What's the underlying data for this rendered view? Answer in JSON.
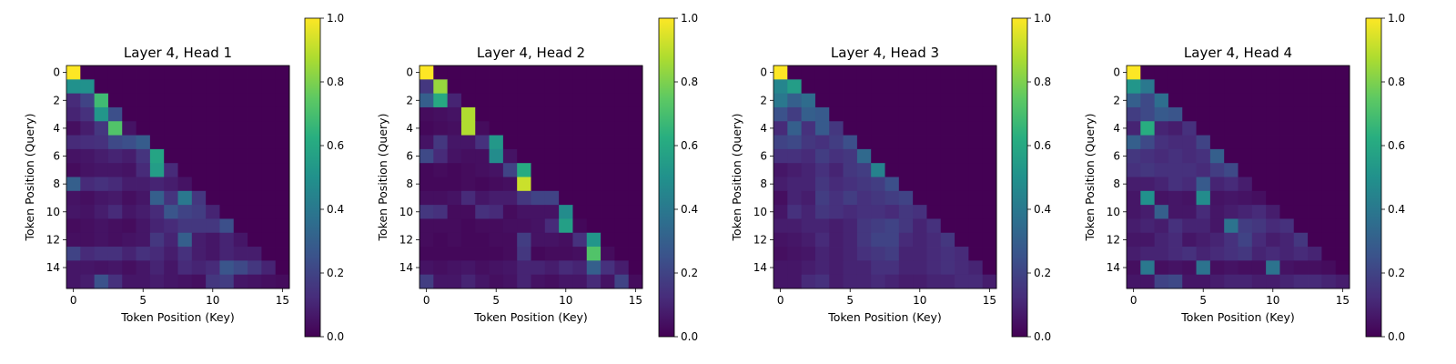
{
  "chart_data": [
    {
      "type": "heatmap",
      "title": "Layer 4, Head 1",
      "xlabel": "Token Position (Key)",
      "ylabel": "Token Position (Query)",
      "x_ticks": [
        0,
        5,
        10,
        15
      ],
      "y_ticks": [
        0,
        2,
        4,
        6,
        8,
        10,
        12,
        14
      ],
      "colorbar": {
        "min": 0.0,
        "max": 1.0,
        "ticks": [
          "0.0",
          "0.2",
          "0.4",
          "0.6",
          "0.8",
          "1.0"
        ]
      },
      "values": [
        [
          1.0
        ],
        [
          0.5,
          0.5
        ],
        [
          0.12,
          0.2,
          0.68
        ],
        [
          0.1,
          0.14,
          0.52,
          0.24
        ],
        [
          0.04,
          0.08,
          0.16,
          0.72,
          0.05
        ],
        [
          0.12,
          0.13,
          0.14,
          0.22,
          0.24,
          0.29
        ],
        [
          0.05,
          0.06,
          0.08,
          0.1,
          0.08,
          0.15,
          0.58
        ],
        [
          0.03,
          0.05,
          0.06,
          0.06,
          0.05,
          0.12,
          0.55,
          0.12
        ],
        [
          0.3,
          0.12,
          0.14,
          0.12,
          0.08,
          0.08,
          0.1,
          0.08,
          0.05
        ],
        [
          0.05,
          0.04,
          0.06,
          0.07,
          0.04,
          0.06,
          0.3,
          0.15,
          0.4,
          0.16
        ],
        [
          0.06,
          0.05,
          0.08,
          0.12,
          0.06,
          0.08,
          0.12,
          0.26,
          0.2,
          0.18,
          0.1
        ],
        [
          0.03,
          0.04,
          0.05,
          0.04,
          0.03,
          0.06,
          0.1,
          0.12,
          0.16,
          0.16,
          0.16,
          0.24
        ],
        [
          0.04,
          0.04,
          0.05,
          0.04,
          0.05,
          0.06,
          0.16,
          0.1,
          0.3,
          0.08,
          0.06,
          0.1,
          0.06
        ],
        [
          0.2,
          0.12,
          0.14,
          0.14,
          0.1,
          0.14,
          0.12,
          0.08,
          0.14,
          0.08,
          0.06,
          0.1,
          0.08,
          0.08
        ],
        [
          0.06,
          0.06,
          0.05,
          0.06,
          0.04,
          0.06,
          0.1,
          0.06,
          0.12,
          0.1,
          0.12,
          0.26,
          0.22,
          0.16,
          0.1
        ],
        [
          0.06,
          0.08,
          0.25,
          0.14,
          0.06,
          0.06,
          0.08,
          0.06,
          0.05,
          0.04,
          0.16,
          0.18,
          0.06,
          0.05,
          0.04,
          0.03
        ]
      ]
    },
    {
      "type": "heatmap",
      "title": "Layer 4, Head 2",
      "xlabel": "Token Position (Key)",
      "ylabel": "Token Position (Query)",
      "x_ticks": [
        0,
        5,
        10,
        15
      ],
      "y_ticks": [
        0,
        2,
        4,
        6,
        8,
        10,
        12,
        14
      ],
      "colorbar": {
        "min": 0.0,
        "max": 1.0,
        "ticks": [
          "0.0",
          "0.2",
          "0.4",
          "0.6",
          "0.8",
          "1.0"
        ]
      },
      "values": [
        [
          1.0
        ],
        [
          0.16,
          0.84
        ],
        [
          0.3,
          0.6,
          0.1
        ],
        [
          0.03,
          0.04,
          0.05,
          0.88
        ],
        [
          0.02,
          0.03,
          0.04,
          0.88,
          0.03
        ],
        [
          0.05,
          0.16,
          0.06,
          0.06,
          0.14,
          0.53
        ],
        [
          0.22,
          0.12,
          0.05,
          0.04,
          0.04,
          0.48,
          0.05
        ],
        [
          0.02,
          0.03,
          0.02,
          0.03,
          0.04,
          0.05,
          0.2,
          0.61
        ],
        [
          0.02,
          0.02,
          0.02,
          0.03,
          0.02,
          0.03,
          0.04,
          0.92
        ],
        [
          0.04,
          0.04,
          0.05,
          0.12,
          0.06,
          0.08,
          0.08,
          0.16,
          0.2,
          0.2
        ],
        [
          0.16,
          0.14,
          0.03,
          0.03,
          0.14,
          0.12,
          0.03,
          0.05,
          0.05,
          0.05,
          0.48
        ],
        [
          0.03,
          0.03,
          0.03,
          0.02,
          0.03,
          0.03,
          0.04,
          0.04,
          0.05,
          0.12,
          0.56,
          0.02
        ],
        [
          0.03,
          0.02,
          0.03,
          0.02,
          0.02,
          0.03,
          0.03,
          0.18,
          0.05,
          0.05,
          0.04,
          0.14,
          0.52
        ],
        [
          0.02,
          0.02,
          0.02,
          0.02,
          0.02,
          0.02,
          0.03,
          0.16,
          0.02,
          0.03,
          0.03,
          0.04,
          0.72,
          0.03
        ],
        [
          0.05,
          0.04,
          0.05,
          0.06,
          0.04,
          0.05,
          0.06,
          0.1,
          0.1,
          0.08,
          0.12,
          0.1,
          0.3,
          0.14,
          0.08
        ],
        [
          0.18,
          0.06,
          0.06,
          0.1,
          0.06,
          0.04,
          0.05,
          0.1,
          0.05,
          0.04,
          0.06,
          0.06,
          0.12,
          0.05,
          0.2,
          0.03
        ]
      ]
    },
    {
      "type": "heatmap",
      "title": "Layer 4, Head 3",
      "xlabel": "Token Position (Key)",
      "ylabel": "Token Position (Query)",
      "x_ticks": [
        0,
        5,
        10,
        15
      ],
      "y_ticks": [
        0,
        2,
        4,
        6,
        8,
        10,
        12,
        14
      ],
      "colorbar": {
        "min": 0.0,
        "max": 1.0,
        "ticks": [
          "0.0",
          "0.2",
          "0.4",
          "0.6",
          "0.8",
          "1.0"
        ]
      },
      "values": [
        [
          1.0
        ],
        [
          0.45,
          0.55
        ],
        [
          0.4,
          0.3,
          0.35
        ],
        [
          0.25,
          0.18,
          0.3,
          0.28
        ],
        [
          0.12,
          0.3,
          0.14,
          0.28,
          0.16
        ],
        [
          0.2,
          0.22,
          0.16,
          0.14,
          0.18,
          0.24
        ],
        [
          0.14,
          0.14,
          0.12,
          0.18,
          0.14,
          0.16,
          0.34
        ],
        [
          0.06,
          0.08,
          0.1,
          0.14,
          0.1,
          0.16,
          0.18,
          0.44
        ],
        [
          0.08,
          0.1,
          0.1,
          0.16,
          0.12,
          0.14,
          0.16,
          0.18,
          0.24
        ],
        [
          0.04,
          0.1,
          0.08,
          0.18,
          0.14,
          0.18,
          0.14,
          0.16,
          0.18,
          0.2
        ],
        [
          0.06,
          0.14,
          0.1,
          0.16,
          0.14,
          0.12,
          0.14,
          0.14,
          0.12,
          0.16,
          0.14
        ],
        [
          0.08,
          0.08,
          0.1,
          0.1,
          0.08,
          0.1,
          0.16,
          0.18,
          0.2,
          0.16,
          0.1,
          0.14
        ],
        [
          0.05,
          0.06,
          0.08,
          0.12,
          0.08,
          0.1,
          0.16,
          0.2,
          0.2,
          0.12,
          0.1,
          0.12,
          0.16
        ],
        [
          0.04,
          0.05,
          0.06,
          0.1,
          0.08,
          0.1,
          0.14,
          0.16,
          0.18,
          0.1,
          0.1,
          0.12,
          0.14,
          0.12
        ],
        [
          0.06,
          0.06,
          0.08,
          0.1,
          0.08,
          0.1,
          0.1,
          0.14,
          0.14,
          0.1,
          0.1,
          0.12,
          0.14,
          0.12,
          0.1
        ],
        [
          0.06,
          0.06,
          0.12,
          0.14,
          0.08,
          0.1,
          0.1,
          0.12,
          0.1,
          0.08,
          0.08,
          0.1,
          0.1,
          0.12,
          0.12,
          0.08
        ]
      ]
    },
    {
      "type": "heatmap",
      "title": "Layer 4, Head 4",
      "xlabel": "Token Position (Key)",
      "ylabel": "Token Position (Query)",
      "x_ticks": [
        0,
        5,
        10,
        15
      ],
      "y_ticks": [
        0,
        2,
        4,
        6,
        8,
        10,
        12,
        14
      ],
      "colorbar": {
        "min": 0.0,
        "max": 1.0,
        "ticks": [
          "0.0",
          "0.2",
          "0.4",
          "0.6",
          "0.8",
          "1.0"
        ]
      },
      "values": [
        [
          1.0
        ],
        [
          0.52,
          0.4
        ],
        [
          0.3,
          0.22,
          0.36
        ],
        [
          0.18,
          0.22,
          0.28,
          0.26
        ],
        [
          0.1,
          0.62,
          0.1,
          0.08,
          0.14
        ],
        [
          0.3,
          0.22,
          0.14,
          0.12,
          0.12,
          0.2
        ],
        [
          0.16,
          0.14,
          0.12,
          0.14,
          0.12,
          0.14,
          0.3
        ],
        [
          0.14,
          0.16,
          0.14,
          0.14,
          0.14,
          0.12,
          0.18,
          0.22
        ],
        [
          0.08,
          0.08,
          0.1,
          0.14,
          0.12,
          0.28,
          0.1,
          0.12,
          0.08
        ],
        [
          0.06,
          0.5,
          0.05,
          0.06,
          0.05,
          0.48,
          0.05,
          0.06,
          0.05,
          0.04
        ],
        [
          0.06,
          0.08,
          0.3,
          0.06,
          0.06,
          0.12,
          0.06,
          0.08,
          0.1,
          0.12,
          0.08
        ],
        [
          0.08,
          0.1,
          0.08,
          0.14,
          0.1,
          0.1,
          0.06,
          0.38,
          0.18,
          0.16,
          0.12,
          0.14
        ],
        [
          0.06,
          0.06,
          0.1,
          0.12,
          0.06,
          0.08,
          0.1,
          0.14,
          0.2,
          0.12,
          0.08,
          0.1,
          0.16
        ],
        [
          0.08,
          0.1,
          0.1,
          0.12,
          0.14,
          0.1,
          0.12,
          0.14,
          0.16,
          0.1,
          0.12,
          0.1,
          0.12,
          0.1
        ],
        [
          0.04,
          0.4,
          0.04,
          0.05,
          0.04,
          0.38,
          0.04,
          0.05,
          0.04,
          0.04,
          0.38,
          0.05,
          0.04,
          0.04,
          0.03
        ],
        [
          0.06,
          0.06,
          0.2,
          0.22,
          0.06,
          0.06,
          0.08,
          0.1,
          0.1,
          0.08,
          0.08,
          0.1,
          0.12,
          0.12,
          0.1,
          0.08
        ]
      ]
    }
  ]
}
